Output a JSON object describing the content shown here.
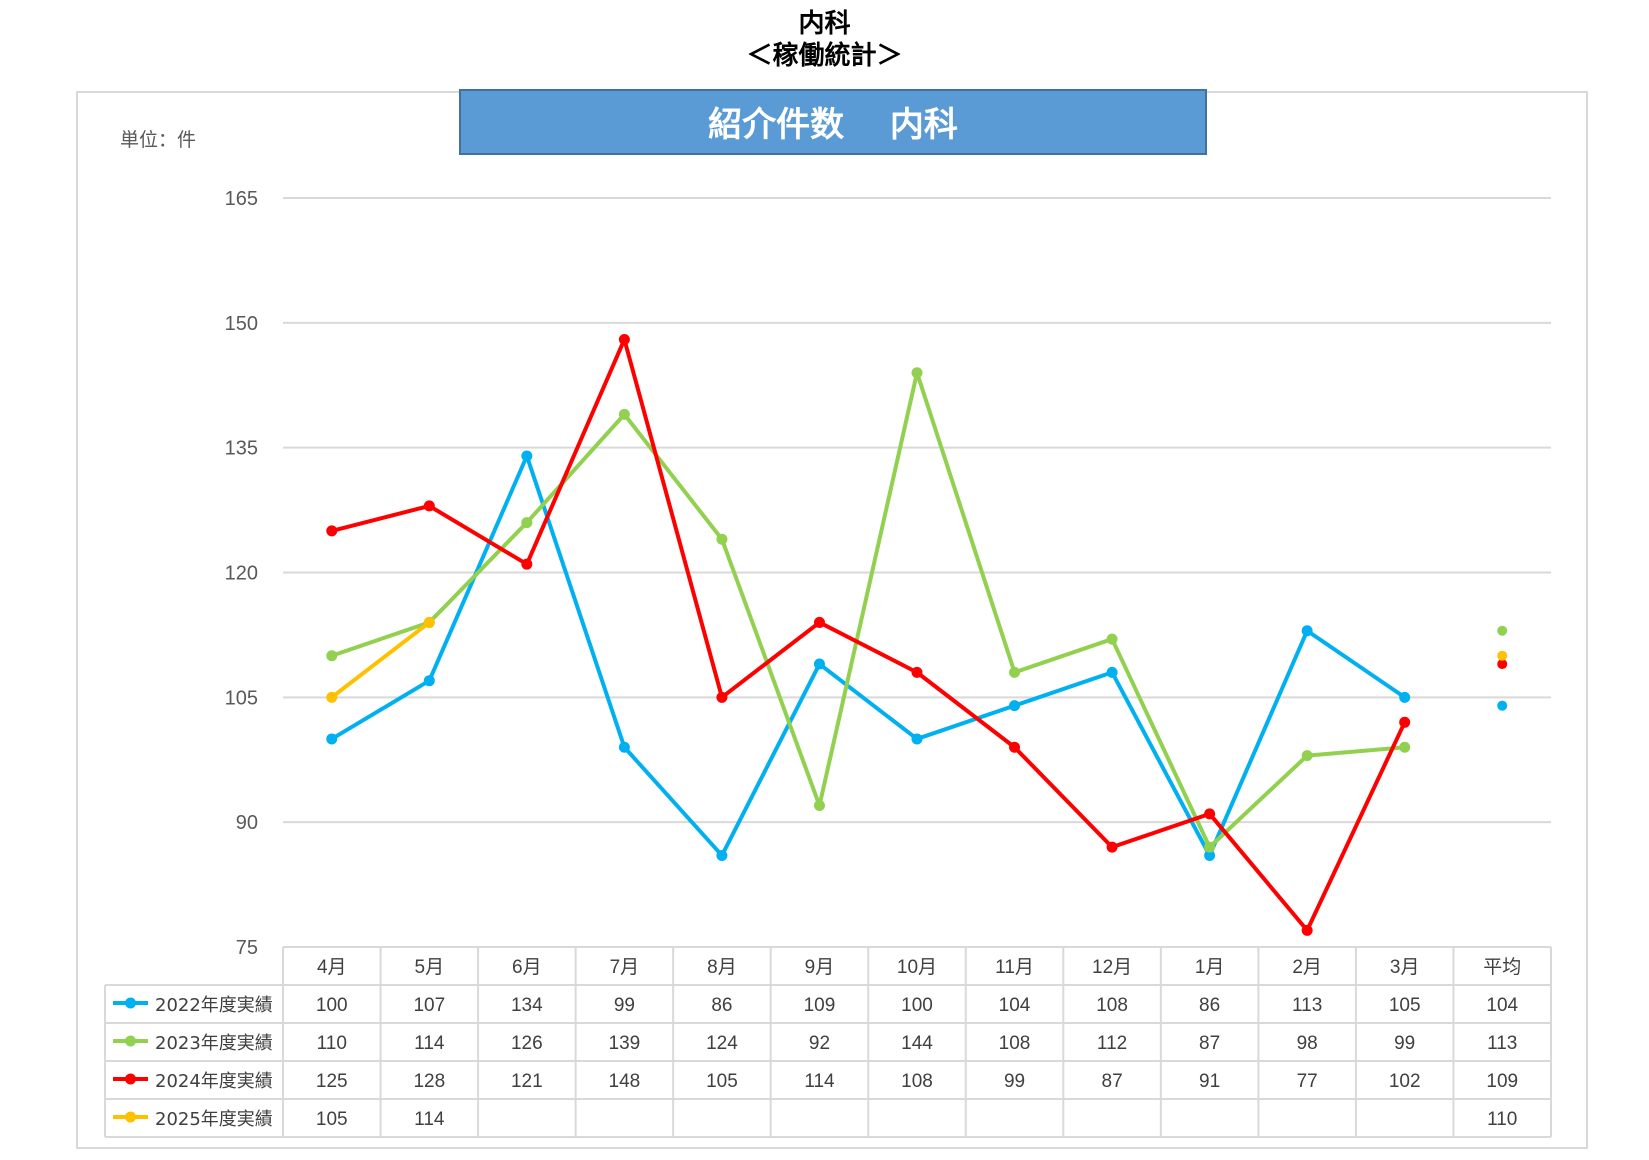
{
  "header": {
    "title_line1": "内科",
    "title_line2": "＜稼働統計＞"
  },
  "chart_data": {
    "type": "line",
    "title": "紹介件数　 内科",
    "unit_label": "単位：件",
    "categories": [
      "4月",
      "5月",
      "6月",
      "7月",
      "8月",
      "9月",
      "10月",
      "11月",
      "12月",
      "1月",
      "2月",
      "3月"
    ],
    "average_label": "平均",
    "ylim": [
      75,
      165
    ],
    "yticks": [
      75,
      90,
      105,
      120,
      135,
      150,
      165
    ],
    "grid": true,
    "legend_position": "data-table-left",
    "series": [
      {
        "name": "2022年度実績",
        "color": "#00B0F0",
        "values": [
          100,
          107,
          134,
          99,
          86,
          109,
          100,
          104,
          108,
          86,
          113,
          105
        ],
        "average": 104
      },
      {
        "name": "2023年度実績",
        "color": "#92D050",
        "values": [
          110,
          114,
          126,
          139,
          124,
          92,
          144,
          108,
          112,
          87,
          98,
          99
        ],
        "average": 113
      },
      {
        "name": "2024年度実績",
        "color": "#FF0000",
        "values": [
          125,
          128,
          121,
          148,
          105,
          114,
          108,
          99,
          87,
          91,
          77,
          102
        ],
        "average": 109
      },
      {
        "name": "2025年度実績",
        "color": "#FFC000",
        "values": [
          105,
          114,
          null,
          null,
          null,
          null,
          null,
          null,
          null,
          null,
          null,
          null
        ],
        "average": 110
      }
    ]
  }
}
